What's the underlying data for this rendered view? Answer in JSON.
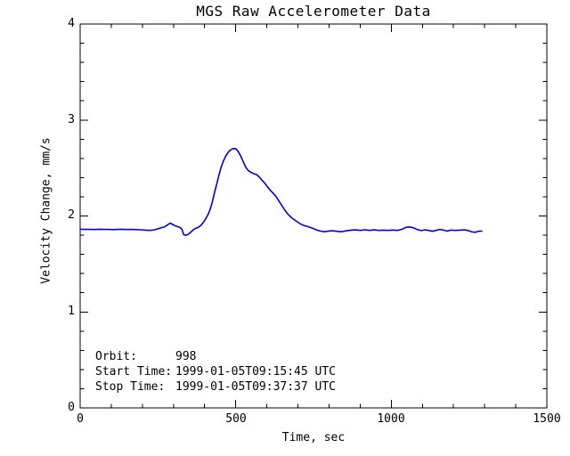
{
  "chart_data": {
    "type": "line",
    "title": "MGS Raw Accelerometer Data",
    "xlabel": "Time, sec",
    "ylabel": "Velocity Change, mm/s",
    "xlim": [
      0,
      1500
    ],
    "ylim": [
      0,
      4
    ],
    "xticks": [
      0,
      500,
      1000,
      1500
    ],
    "yticks": [
      0,
      1,
      2,
      3,
      4
    ],
    "xtick_labels": [
      "0",
      "500",
      "1000",
      "1500"
    ],
    "ytick_labels": [
      "0",
      "1",
      "2",
      "3",
      "4"
    ],
    "minor_xtick_step": 100,
    "minor_ytick_step": 0.2,
    "grid": false,
    "legend": "none",
    "colors": {
      "line": "#0000d9",
      "axis": "#000000",
      "background": "#ffffff",
      "text": "#000000"
    },
    "annotation": {
      "lines": [
        {
          "label": "Orbit:",
          "value": "998"
        },
        {
          "label": "Start Time:",
          "value": "1999-01-05T09:15:45 UTC"
        },
        {
          "label": "Stop Time:",
          "value": "1999-01-05T09:37:37 UTC"
        }
      ]
    },
    "series": [
      {
        "name": "velocity_change_mm_per_s",
        "points": [
          [
            0,
            1.862
          ],
          [
            15,
            1.86
          ],
          [
            30,
            1.861
          ],
          [
            45,
            1.859
          ],
          [
            60,
            1.862
          ],
          [
            75,
            1.86
          ],
          [
            90,
            1.861
          ],
          [
            105,
            1.858
          ],
          [
            120,
            1.86
          ],
          [
            135,
            1.862
          ],
          [
            150,
            1.859
          ],
          [
            165,
            1.86
          ],
          [
            180,
            1.858
          ],
          [
            195,
            1.856
          ],
          [
            210,
            1.852
          ],
          [
            225,
            1.85
          ],
          [
            240,
            1.856
          ],
          [
            252,
            1.868
          ],
          [
            262,
            1.878
          ],
          [
            272,
            1.888
          ],
          [
            282,
            1.91
          ],
          [
            290,
            1.925
          ],
          [
            297,
            1.912
          ],
          [
            305,
            1.898
          ],
          [
            313,
            1.89
          ],
          [
            320,
            1.882
          ],
          [
            327,
            1.862
          ],
          [
            333,
            1.805
          ],
          [
            340,
            1.798
          ],
          [
            348,
            1.812
          ],
          [
            356,
            1.832
          ],
          [
            364,
            1.858
          ],
          [
            372,
            1.872
          ],
          [
            380,
            1.882
          ],
          [
            388,
            1.902
          ],
          [
            396,
            1.932
          ],
          [
            404,
            1.972
          ],
          [
            411,
            2.015
          ],
          [
            418,
            2.07
          ],
          [
            425,
            2.15
          ],
          [
            432,
            2.245
          ],
          [
            439,
            2.335
          ],
          [
            446,
            2.425
          ],
          [
            453,
            2.505
          ],
          [
            460,
            2.57
          ],
          [
            468,
            2.625
          ],
          [
            476,
            2.665
          ],
          [
            484,
            2.69
          ],
          [
            492,
            2.703
          ],
          [
            500,
            2.7
          ],
          [
            508,
            2.672
          ],
          [
            516,
            2.625
          ],
          [
            524,
            2.565
          ],
          [
            532,
            2.51
          ],
          [
            540,
            2.475
          ],
          [
            549,
            2.455
          ],
          [
            558,
            2.44
          ],
          [
            567,
            2.432
          ],
          [
            576,
            2.405
          ],
          [
            585,
            2.37
          ],
          [
            594,
            2.34
          ],
          [
            603,
            2.3
          ],
          [
            612,
            2.265
          ],
          [
            621,
            2.235
          ],
          [
            630,
            2.2
          ],
          [
            639,
            2.155
          ],
          [
            648,
            2.11
          ],
          [
            657,
            2.065
          ],
          [
            666,
            2.025
          ],
          [
            675,
            1.995
          ],
          [
            684,
            1.97
          ],
          [
            693,
            1.95
          ],
          [
            702,
            1.93
          ],
          [
            711,
            1.912
          ],
          [
            720,
            1.9
          ],
          [
            729,
            1.892
          ],
          [
            738,
            1.882
          ],
          [
            747,
            1.872
          ],
          [
            756,
            1.86
          ],
          [
            765,
            1.85
          ],
          [
            774,
            1.842
          ],
          [
            783,
            1.836
          ],
          [
            795,
            1.84
          ],
          [
            810,
            1.846
          ],
          [
            825,
            1.84
          ],
          [
            840,
            1.836
          ],
          [
            855,
            1.845
          ],
          [
            870,
            1.852
          ],
          [
            885,
            1.855
          ],
          [
            900,
            1.85
          ],
          [
            915,
            1.856
          ],
          [
            930,
            1.85
          ],
          [
            945,
            1.855
          ],
          [
            960,
            1.85
          ],
          [
            975,
            1.852
          ],
          [
            990,
            1.85
          ],
          [
            1005,
            1.853
          ],
          [
            1020,
            1.85
          ],
          [
            1035,
            1.862
          ],
          [
            1048,
            1.882
          ],
          [
            1060,
            1.886
          ],
          [
            1072,
            1.876
          ],
          [
            1084,
            1.858
          ],
          [
            1096,
            1.848
          ],
          [
            1108,
            1.855
          ],
          [
            1120,
            1.85
          ],
          [
            1132,
            1.84
          ],
          [
            1144,
            1.85
          ],
          [
            1156,
            1.86
          ],
          [
            1168,
            1.852
          ],
          [
            1180,
            1.842
          ],
          [
            1192,
            1.853
          ],
          [
            1205,
            1.85
          ],
          [
            1220,
            1.852
          ],
          [
            1235,
            1.855
          ],
          [
            1248,
            1.848
          ],
          [
            1258,
            1.835
          ],
          [
            1270,
            1.83
          ],
          [
            1280,
            1.84
          ],
          [
            1291,
            1.843
          ]
        ]
      }
    ]
  }
}
